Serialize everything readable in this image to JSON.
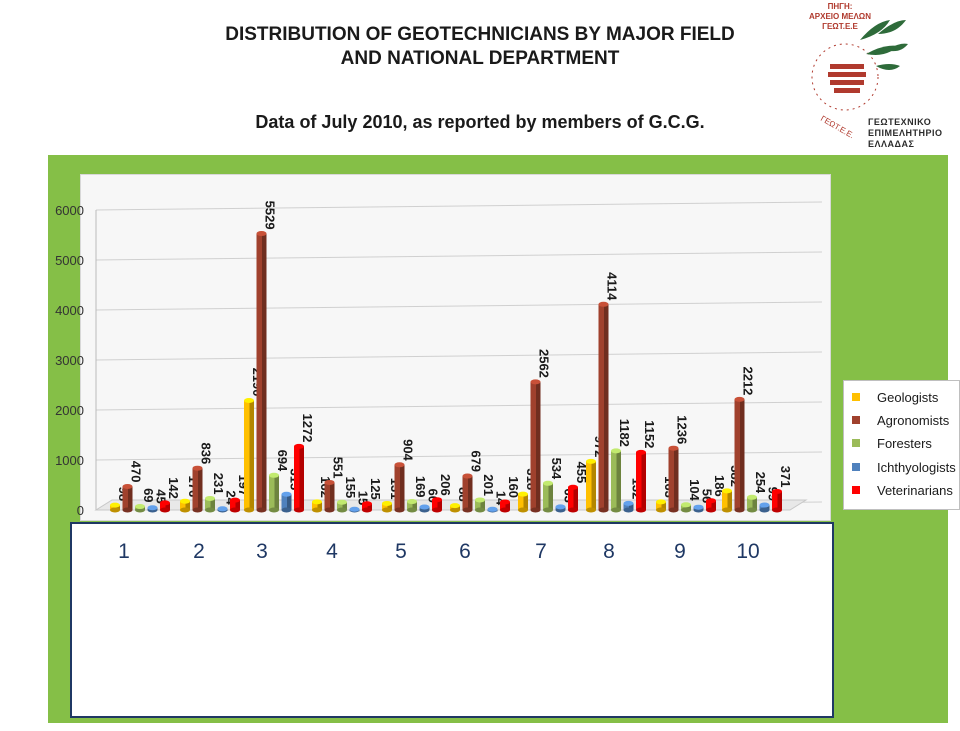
{
  "title_line1": "DISTRIBUTION OF GEOTECHNICIANS BY MAJOR FIELD",
  "title_line2": "AND NATIONAL DEPARTMENT",
  "subtitle": "Data of July 2010, as reported by members of G.C.G.",
  "logo": {
    "source_line1": "ΠΗΓΗ:",
    "source_line2": "ΑΡΧΕΙΟ ΜΕΛΩΝ",
    "source_line3": "ΓΕΩΤ.Ε.Ε",
    "ring_text": "ΓΕΩΤ.Ε.Ε.",
    "name_line1": "ΓΕΩΤΕΧΝΙΚΟ",
    "name_line2": "ΕΠΙΜΕΛΗΤΗΡΙΟ",
    "name_line3": "ΕΛΛΑΔΑΣ",
    "colors": {
      "green": "#2e6b3a",
      "red": "#b03a2e"
    }
  },
  "chart_data": {
    "type": "bar",
    "categories": [
      "1",
      "2",
      "3",
      "4",
      "5",
      "6",
      "7",
      "8",
      "9",
      "10"
    ],
    "series": [
      {
        "name": "Geologists",
        "color": "#ffc000",
        "values": [
          98,
          176,
          2190,
          162,
          131,
          88,
          318,
          972,
          163,
          382
        ]
      },
      {
        "name": "Agronomists",
        "color": "#a0412d",
        "values": [
          470,
          836,
          5529,
          551,
          904,
          679,
          2562,
          4114,
          1236,
          2212
        ]
      },
      {
        "name": "Foresters",
        "color": "#9bbb59",
        "values": [
          69,
          231,
          694,
          155,
          169,
          201,
          534,
          1182,
          104,
          254
        ]
      },
      {
        "name": "Ichthyologists",
        "color": "#4f81bd",
        "values": [
          45,
          24,
          315,
          15,
          60,
          14,
          63,
          132,
          56,
          99
        ]
      },
      {
        "name": "Veterinarians",
        "color": "#ff0000",
        "values": [
          142,
          197,
          1272,
          125,
          206,
          160,
          455,
          1152,
          186,
          371
        ]
      }
    ],
    "ylim": [
      0,
      6000
    ],
    "yticks": [
      "0",
      "1000",
      "2000",
      "3000",
      "4000",
      "5000",
      "6000"
    ],
    "grid": true,
    "legend": "right",
    "bar_style": "3d-cylinder"
  }
}
